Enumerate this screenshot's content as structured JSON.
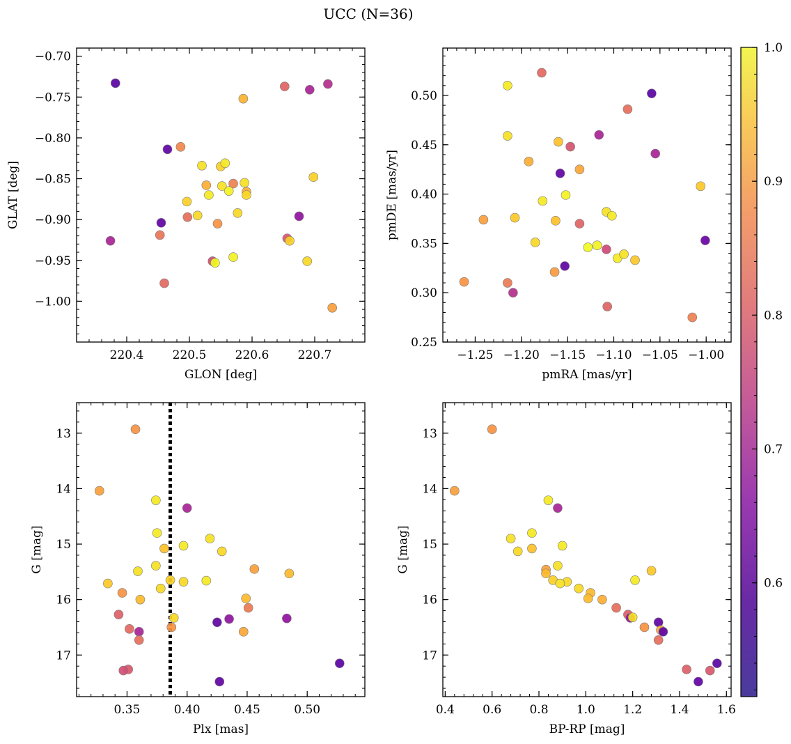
{
  "figure": {
    "title": "UCC (N=36)"
  },
  "colorbar": {
    "colormap": "plasma",
    "min": 0.515,
    "max": 1.0,
    "ticks": [
      0.6,
      0.7,
      0.8,
      0.9,
      1.0
    ],
    "tick_labels": [
      "0.6",
      "0.7",
      "0.8",
      "0.9",
      "1.0"
    ]
  },
  "chart_data": [
    {
      "type": "scatter",
      "xlabel": "GLON [deg]",
      "ylabel": "GLAT [deg]",
      "xlim": [
        220.32,
        220.78
      ],
      "ylim": [
        -1.05,
        -0.69
      ],
      "xticks": [
        220.4,
        220.5,
        220.6,
        220.7
      ],
      "xtick_labels": [
        "220.4",
        "220.5",
        "220.6",
        "220.7"
      ],
      "yticks": [
        -0.7,
        -0.75,
        -0.8,
        -0.85,
        -0.9,
        -0.95,
        -1.0
      ],
      "ytick_labels": [
        "−0.70",
        "−0.75",
        "−0.80",
        "−0.85",
        "−0.90",
        "−0.95",
        "−1.00"
      ],
      "points": [
        {
          "x": 220.382,
          "y": -0.733,
          "c": 0.54
        },
        {
          "x": 220.465,
          "y": -0.814,
          "c": 0.55
        },
        {
          "x": 220.455,
          "y": -0.904,
          "c": 0.55
        },
        {
          "x": 220.374,
          "y": -0.926,
          "c": 0.66
        },
        {
          "x": 220.692,
          "y": -0.741,
          "c": 0.66
        },
        {
          "x": 220.721,
          "y": -0.734,
          "c": 0.68
        },
        {
          "x": 220.675,
          "y": -0.896,
          "c": 0.62
        },
        {
          "x": 220.652,
          "y": -0.737,
          "c": 0.78
        },
        {
          "x": 220.486,
          "y": -0.811,
          "c": 0.84
        },
        {
          "x": 220.453,
          "y": -0.919,
          "c": 0.81
        },
        {
          "x": 220.46,
          "y": -0.978,
          "c": 0.79
        },
        {
          "x": 220.497,
          "y": -0.897,
          "c": 0.8
        },
        {
          "x": 220.537,
          "y": -0.951,
          "c": 0.74
        },
        {
          "x": 220.656,
          "y": -0.923,
          "c": 0.76
        },
        {
          "x": 220.57,
          "y": -0.856,
          "c": 0.83
        },
        {
          "x": 220.545,
          "y": -0.905,
          "c": 0.86
        },
        {
          "x": 220.728,
          "y": -1.008,
          "c": 0.88
        },
        {
          "x": 220.586,
          "y": -0.752,
          "c": 0.91
        },
        {
          "x": 220.527,
          "y": -0.858,
          "c": 0.9
        },
        {
          "x": 220.591,
          "y": -0.866,
          "c": 0.9
        },
        {
          "x": 220.52,
          "y": -0.834,
          "c": 0.97
        },
        {
          "x": 220.55,
          "y": -0.835,
          "c": 0.95
        },
        {
          "x": 220.557,
          "y": -0.831,
          "c": 0.98
        },
        {
          "x": 220.496,
          "y": -0.878,
          "c": 0.95
        },
        {
          "x": 220.531,
          "y": -0.87,
          "c": 0.98
        },
        {
          "x": 220.552,
          "y": -0.859,
          "c": 0.97
        },
        {
          "x": 220.563,
          "y": -0.865,
          "c": 0.99
        },
        {
          "x": 220.588,
          "y": -0.855,
          "c": 0.97
        },
        {
          "x": 220.591,
          "y": -0.87,
          "c": 0.96
        },
        {
          "x": 220.513,
          "y": -0.895,
          "c": 0.96
        },
        {
          "x": 220.577,
          "y": -0.892,
          "c": 0.96
        },
        {
          "x": 220.541,
          "y": -0.953,
          "c": 1.0
        },
        {
          "x": 220.57,
          "y": -0.946,
          "c": 0.99
        },
        {
          "x": 220.66,
          "y": -0.926,
          "c": 0.95
        },
        {
          "x": 220.698,
          "y": -0.848,
          "c": 0.95
        },
        {
          "x": 220.688,
          "y": -0.951,
          "c": 0.96
        }
      ]
    },
    {
      "type": "scatter",
      "xlabel": "pmRA [mas/yr]",
      "ylabel": "pmDE [mas/yr]",
      "xlim": [
        -1.285,
        -0.973
      ],
      "ylim": [
        0.25,
        0.548
      ],
      "xticks": [
        -1.25,
        -1.2,
        -1.15,
        -1.1,
        -1.05,
        -1.0
      ],
      "xtick_labels": [
        "−1.25",
        "−1.20",
        "−1.15",
        "−1.10",
        "−1.05",
        "−1.00"
      ],
      "yticks": [
        0.25,
        0.3,
        0.35,
        0.4,
        0.45,
        0.5
      ],
      "ytick_labels": [
        "0.25",
        "0.30",
        "0.35",
        "0.40",
        "0.45",
        "0.50"
      ],
      "points": [
        {
          "x": -1.059,
          "y": 0.502,
          "c": 0.54
        },
        {
          "x": -1.158,
          "y": 0.421,
          "c": 0.55
        },
        {
          "x": -1.153,
          "y": 0.327,
          "c": 0.55
        },
        {
          "x": -1.001,
          "y": 0.353,
          "c": 0.56
        },
        {
          "x": -1.116,
          "y": 0.46,
          "c": 0.66
        },
        {
          "x": -1.055,
          "y": 0.441,
          "c": 0.66
        },
        {
          "x": -1.209,
          "y": 0.3,
          "c": 0.68
        },
        {
          "x": -1.108,
          "y": 0.344,
          "c": 0.73
        },
        {
          "x": -1.147,
          "y": 0.448,
          "c": 0.75
        },
        {
          "x": -1.178,
          "y": 0.523,
          "c": 0.79
        },
        {
          "x": -1.085,
          "y": 0.486,
          "c": 0.8
        },
        {
          "x": -1.137,
          "y": 0.37,
          "c": 0.78
        },
        {
          "x": -1.107,
          "y": 0.286,
          "c": 0.78
        },
        {
          "x": -1.015,
          "y": 0.275,
          "c": 0.83
        },
        {
          "x": -1.215,
          "y": 0.31,
          "c": 0.82
        },
        {
          "x": -1.262,
          "y": 0.311,
          "c": 0.86
        },
        {
          "x": -1.241,
          "y": 0.374,
          "c": 0.88
        },
        {
          "x": -1.164,
          "y": 0.321,
          "c": 0.87
        },
        {
          "x": -1.137,
          "y": 0.425,
          "c": 0.89
        },
        {
          "x": -1.192,
          "y": 0.433,
          "c": 0.9
        },
        {
          "x": -1.16,
          "y": 0.453,
          "c": 0.93
        },
        {
          "x": -1.207,
          "y": 0.376,
          "c": 0.94
        },
        {
          "x": -1.163,
          "y": 0.373,
          "c": 0.93
        },
        {
          "x": -1.006,
          "y": 0.408,
          "c": 0.94
        },
        {
          "x": -1.077,
          "y": 0.333,
          "c": 0.94
        },
        {
          "x": -1.215,
          "y": 0.51,
          "c": 0.98
        },
        {
          "x": -1.215,
          "y": 0.459,
          "c": 0.97
        },
        {
          "x": -1.177,
          "y": 0.393,
          "c": 0.98
        },
        {
          "x": -1.152,
          "y": 0.399,
          "c": 0.99
        },
        {
          "x": -1.185,
          "y": 0.351,
          "c": 0.96
        },
        {
          "x": -1.108,
          "y": 0.382,
          "c": 0.97
        },
        {
          "x": -1.102,
          "y": 0.378,
          "c": 0.98
        },
        {
          "x": -1.128,
          "y": 0.346,
          "c": 1.0
        },
        {
          "x": -1.118,
          "y": 0.348,
          "c": 0.99
        },
        {
          "x": -1.096,
          "y": 0.335,
          "c": 0.98
        },
        {
          "x": -1.089,
          "y": 0.339,
          "c": 0.97
        }
      ]
    },
    {
      "type": "scatter",
      "xlabel": "Plx [mas]",
      "ylabel": "G [mag]",
      "xlim": [
        0.308,
        0.548
      ],
      "ylim": [
        17.75,
        12.45
      ],
      "y_inverted": true,
      "xticks": [
        0.35,
        0.4,
        0.45,
        0.5
      ],
      "xtick_labels": [
        "0.35",
        "0.40",
        "0.45",
        "0.50"
      ],
      "yticks": [
        13,
        14,
        15,
        16,
        17
      ],
      "ytick_labels": [
        "13",
        "14",
        "15",
        "16",
        "17"
      ],
      "vline": {
        "x": 0.386,
        "style": "dotted",
        "color": "#000000"
      },
      "points": [
        {
          "x": 0.357,
          "y": 12.93,
          "c": 0.86
        },
        {
          "x": 0.327,
          "y": 14.04,
          "c": 0.88
        },
        {
          "x": 0.374,
          "y": 14.21,
          "c": 0.98
        },
        {
          "x": 0.4,
          "y": 14.35,
          "c": 0.66
        },
        {
          "x": 0.375,
          "y": 14.8,
          "c": 0.98
        },
        {
          "x": 0.419,
          "y": 14.9,
          "c": 0.97
        },
        {
          "x": 0.397,
          "y": 15.03,
          "c": 0.98
        },
        {
          "x": 0.381,
          "y": 15.08,
          "c": 0.93
        },
        {
          "x": 0.429,
          "y": 15.13,
          "c": 0.96
        },
        {
          "x": 0.374,
          "y": 15.39,
          "c": 0.97
        },
        {
          "x": 0.456,
          "y": 15.45,
          "c": 0.88
        },
        {
          "x": 0.359,
          "y": 15.49,
          "c": 0.97
        },
        {
          "x": 0.485,
          "y": 15.53,
          "c": 0.92
        },
        {
          "x": 0.386,
          "y": 15.65,
          "c": 0.95
        },
        {
          "x": 0.416,
          "y": 15.66,
          "c": 0.98
        },
        {
          "x": 0.397,
          "y": 15.68,
          "c": 0.96
        },
        {
          "x": 0.334,
          "y": 15.71,
          "c": 0.94
        },
        {
          "x": 0.378,
          "y": 15.8,
          "c": 0.96
        },
        {
          "x": 0.346,
          "y": 15.88,
          "c": 0.86
        },
        {
          "x": 0.449,
          "y": 15.98,
          "c": 0.92
        },
        {
          "x": 0.361,
          "y": 16.0,
          "c": 0.92
        },
        {
          "x": 0.451,
          "y": 16.15,
          "c": 0.82
        },
        {
          "x": 0.343,
          "y": 16.27,
          "c": 0.77
        },
        {
          "x": 0.389,
          "y": 16.33,
          "c": 0.96
        },
        {
          "x": 0.435,
          "y": 16.35,
          "c": 0.62
        },
        {
          "x": 0.483,
          "y": 16.34,
          "c": 0.62
        },
        {
          "x": 0.425,
          "y": 16.41,
          "c": 0.55
        },
        {
          "x": 0.387,
          "y": 16.5,
          "c": 0.86
        },
        {
          "x": 0.352,
          "y": 16.53,
          "c": 0.79
        },
        {
          "x": 0.447,
          "y": 16.58,
          "c": 0.89
        },
        {
          "x": 0.36,
          "y": 16.58,
          "c": 0.66
        },
        {
          "x": 0.36,
          "y": 16.73,
          "c": 0.8
        },
        {
          "x": 0.527,
          "y": 17.15,
          "c": 0.54
        },
        {
          "x": 0.351,
          "y": 17.26,
          "c": 0.76
        },
        {
          "x": 0.347,
          "y": 17.28,
          "c": 0.74
        },
        {
          "x": 0.427,
          "y": 17.48,
          "c": 0.55
        }
      ]
    },
    {
      "type": "scatter",
      "xlabel": "BP-RP [mag]",
      "ylabel": "G [mag]",
      "xlim": [
        0.39,
        1.62
      ],
      "ylim": [
        17.75,
        12.45
      ],
      "y_inverted": true,
      "xticks": [
        0.4,
        0.6,
        0.8,
        1.0,
        1.2,
        1.4,
        1.6
      ],
      "xtick_labels": [
        "0.4",
        "0.6",
        "0.8",
        "1.0",
        "1.2",
        "1.4",
        "1.6"
      ],
      "yticks": [
        13,
        14,
        15,
        16,
        17
      ],
      "ytick_labels": [
        "13",
        "14",
        "15",
        "16",
        "17"
      ],
      "points": [
        {
          "x": 0.6,
          "y": 12.93,
          "c": 0.86
        },
        {
          "x": 0.44,
          "y": 14.04,
          "c": 0.88
        },
        {
          "x": 0.84,
          "y": 14.21,
          "c": 0.98
        },
        {
          "x": 0.88,
          "y": 14.35,
          "c": 0.66
        },
        {
          "x": 0.77,
          "y": 14.8,
          "c": 0.98
        },
        {
          "x": 0.68,
          "y": 14.9,
          "c": 0.97
        },
        {
          "x": 0.9,
          "y": 15.03,
          "c": 0.98
        },
        {
          "x": 0.77,
          "y": 15.08,
          "c": 0.93
        },
        {
          "x": 0.71,
          "y": 15.13,
          "c": 0.96
        },
        {
          "x": 0.88,
          "y": 15.39,
          "c": 0.97
        },
        {
          "x": 1.28,
          "y": 15.48,
          "c": 0.94
        },
        {
          "x": 0.83,
          "y": 15.46,
          "c": 0.88
        },
        {
          "x": 0.83,
          "y": 15.53,
          "c": 0.92
        },
        {
          "x": 1.21,
          "y": 15.65,
          "c": 0.98
        },
        {
          "x": 0.86,
          "y": 15.65,
          "c": 0.95
        },
        {
          "x": 0.92,
          "y": 15.68,
          "c": 0.96
        },
        {
          "x": 0.89,
          "y": 15.71,
          "c": 0.97
        },
        {
          "x": 0.97,
          "y": 15.8,
          "c": 0.96
        },
        {
          "x": 1.02,
          "y": 15.88,
          "c": 0.92
        },
        {
          "x": 1.01,
          "y": 15.98,
          "c": 0.92
        },
        {
          "x": 1.07,
          "y": 16.0,
          "c": 0.9
        },
        {
          "x": 1.13,
          "y": 16.15,
          "c": 0.8
        },
        {
          "x": 1.18,
          "y": 16.27,
          "c": 0.77
        },
        {
          "x": 1.19,
          "y": 16.33,
          "c": 0.62
        },
        {
          "x": 1.2,
          "y": 16.32,
          "c": 0.97
        },
        {
          "x": 1.31,
          "y": 16.41,
          "c": 0.55
        },
        {
          "x": 1.25,
          "y": 16.5,
          "c": 0.86
        },
        {
          "x": 1.32,
          "y": 16.55,
          "c": 0.9
        },
        {
          "x": 1.33,
          "y": 16.58,
          "c": 0.55
        },
        {
          "x": 1.31,
          "y": 16.73,
          "c": 0.8
        },
        {
          "x": 1.56,
          "y": 17.15,
          "c": 0.54
        },
        {
          "x": 1.43,
          "y": 17.26,
          "c": 0.77
        },
        {
          "x": 1.53,
          "y": 17.28,
          "c": 0.76
        },
        {
          "x": 1.48,
          "y": 17.48,
          "c": 0.55
        }
      ]
    }
  ]
}
